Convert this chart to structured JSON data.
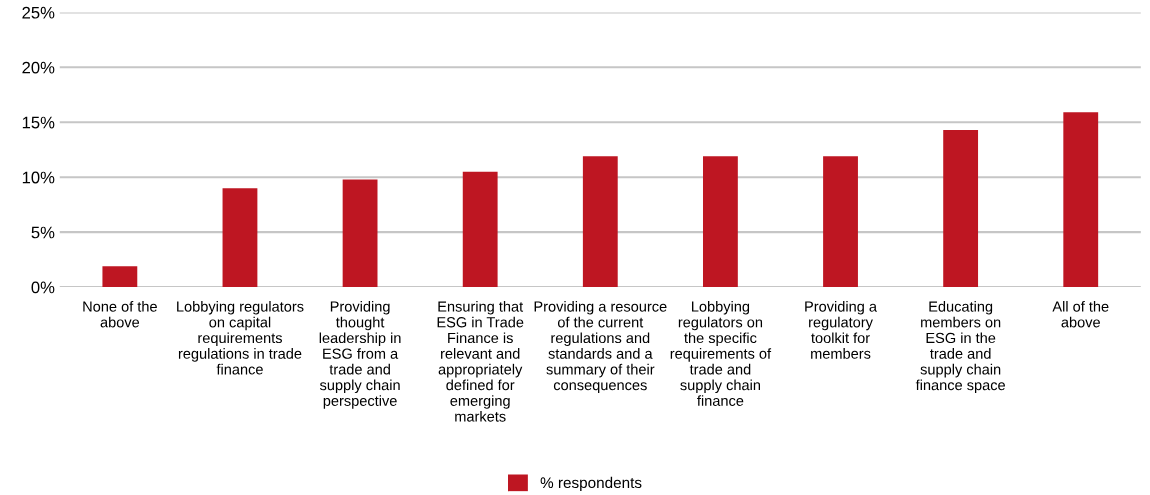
{
  "chart_data": {
    "type": "bar",
    "categories": [
      "None of the\nabove",
      "Lobbying regulators\non capital\nrequirements\nregulations in trade\nfinance",
      "Providing\nthought\nleadership in\nESG from a\ntrade and\nsupply chain\nperspective",
      "Ensuring that\nESG in Trade\nFinance is\nrelevant and\nappropriately\ndefined for\nemerging\nmarkets",
      "Providing a resource\nof the current\nregulations and\nstandards and a\nsummary of their\nconsequences",
      "Lobbying\nregulators on\nthe specific\nrequirements of\ntrade and\nsupply chain\nfinance",
      "Providing a\nregulatory\ntoolkit for\nmembers",
      "Educating\nmembers on\nESG in the\ntrade and\nsupply chain\nfinance space",
      "All of the\nabove"
    ],
    "series": [
      {
        "name": "% respondents",
        "color": "#be1622",
        "values": [
          1.9,
          9.0,
          9.8,
          10.5,
          11.9,
          11.9,
          11.9,
          14.3,
          15.9
        ]
      }
    ],
    "ylim": [
      0,
      25
    ],
    "yticks": [
      {
        "value": 0,
        "label": "0%"
      },
      {
        "value": 5,
        "label": "5%"
      },
      {
        "value": 10,
        "label": "10%"
      },
      {
        "value": 15,
        "label": "15%"
      },
      {
        "value": 20,
        "label": "20%"
      },
      {
        "value": 25,
        "label": "25%"
      }
    ],
    "grid": "y",
    "legend": "bottom"
  }
}
